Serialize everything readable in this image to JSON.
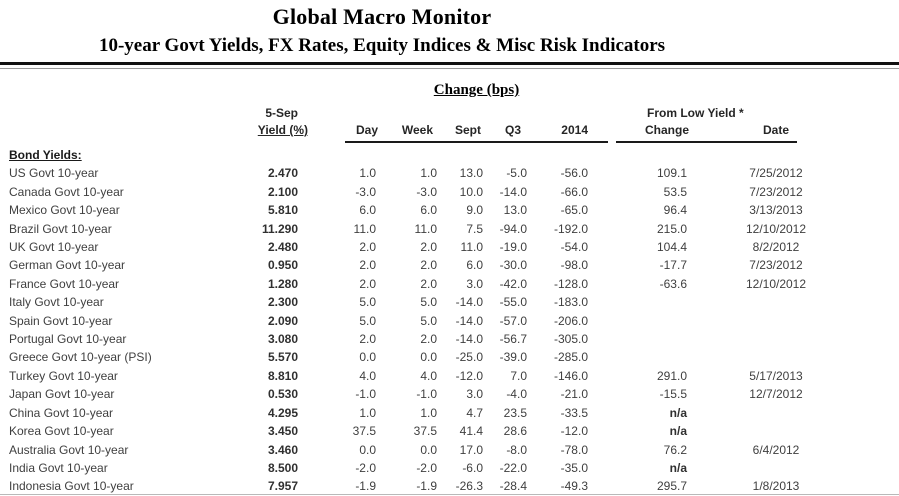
{
  "header": {
    "title": "Global Macro Monitor",
    "subtitle": "10-year Govt Yields, FX Rates, Equity Indices & Misc Risk Indicators"
  },
  "colors": {
    "text": "#3f3f3f",
    "heading": "#000000",
    "rule": "#111111"
  },
  "table": {
    "group_headers": {
      "change_bps": "Change (bps)",
      "from_low_yield": "From Low Yield *"
    },
    "columns": {
      "asof": "5-Sep",
      "yield": "Yield (%)",
      "day": "Day",
      "week": "Week",
      "sept": "Sept",
      "q3": "Q3",
      "y2014": "2014",
      "change": "Change",
      "date": "Date"
    },
    "section_label": "Bond Yields:",
    "rows": [
      {
        "name": "US Govt 10-year",
        "yield": "2.470",
        "day": "1.0",
        "week": "1.0",
        "sept": "13.0",
        "q3": "-5.0",
        "y2014": "-56.0",
        "change": "109.1",
        "date": "7/25/2012"
      },
      {
        "name": "Canada Govt 10-year",
        "yield": "2.100",
        "day": "-3.0",
        "week": "-3.0",
        "sept": "10.0",
        "q3": "-14.0",
        "y2014": "-66.0",
        "change": "53.5",
        "date": "7/23/2012"
      },
      {
        "name": "Mexico Govt 10-year",
        "yield": "5.810",
        "day": "6.0",
        "week": "6.0",
        "sept": "9.0",
        "q3": "13.0",
        "y2014": "-65.0",
        "change": "96.4",
        "date": "3/13/2013"
      },
      {
        "name": "Brazil Govt 10-year",
        "yield": "11.290",
        "day": "11.0",
        "week": "11.0",
        "sept": "7.5",
        "q3": "-94.0",
        "y2014": "-192.0",
        "change": "215.0",
        "date": "12/10/2012"
      },
      {
        "name": "UK Govt 10-year",
        "yield": "2.480",
        "day": "2.0",
        "week": "2.0",
        "sept": "11.0",
        "q3": "-19.0",
        "y2014": "-54.0",
        "change": "104.4",
        "date": "8/2/2012"
      },
      {
        "name": "German Govt 10-year",
        "yield": "0.950",
        "day": "2.0",
        "week": "2.0",
        "sept": "6.0",
        "q3": "-30.0",
        "y2014": "-98.0",
        "change": "-17.7",
        "date": "7/23/2012"
      },
      {
        "name": "France Govt 10-year",
        "yield": "1.280",
        "day": "2.0",
        "week": "2.0",
        "sept": "3.0",
        "q3": "-42.0",
        "y2014": "-128.0",
        "change": "-63.6",
        "date": "12/10/2012"
      },
      {
        "name": "Italy Govt 10-year",
        "yield": "2.300",
        "day": "5.0",
        "week": "5.0",
        "sept": "-14.0",
        "q3": "-55.0",
        "y2014": "-183.0",
        "change": "",
        "date": ""
      },
      {
        "name": "Spain Govt 10-year",
        "yield": "2.090",
        "day": "5.0",
        "week": "5.0",
        "sept": "-14.0",
        "q3": "-57.0",
        "y2014": "-206.0",
        "change": "",
        "date": ""
      },
      {
        "name": "Portugal Govt 10-year",
        "yield": "3.080",
        "day": "2.0",
        "week": "2.0",
        "sept": "-14.0",
        "q3": "-56.7",
        "y2014": "-305.0",
        "change": "",
        "date": ""
      },
      {
        "name": "Greece Govt 10-year (PSI)",
        "yield": "5.570",
        "day": "0.0",
        "week": "0.0",
        "sept": "-25.0",
        "q3": "-39.0",
        "y2014": "-285.0",
        "change": "",
        "date": ""
      },
      {
        "name": "Turkey Govt 10-year",
        "yield": "8.810",
        "day": "4.0",
        "week": "4.0",
        "sept": "-12.0",
        "q3": "7.0",
        "y2014": "-146.0",
        "change": "291.0",
        "date": "5/17/2013"
      },
      {
        "name": "Japan Govt 10-year",
        "yield": "0.530",
        "day": "-1.0",
        "week": "-1.0",
        "sept": "3.0",
        "q3": "-4.0",
        "y2014": "-21.0",
        "change": "-15.5",
        "date": "12/7/2012"
      },
      {
        "name": "China Govt 10-year",
        "yield": "4.295",
        "day": "1.0",
        "week": "1.0",
        "sept": "4.7",
        "q3": "23.5",
        "y2014": "-33.5",
        "change": "n/a",
        "date": ""
      },
      {
        "name": "Korea Govt 10-year",
        "yield": "3.450",
        "day": "37.5",
        "week": "37.5",
        "sept": "41.4",
        "q3": "28.6",
        "y2014": "-12.0",
        "change": "n/a",
        "date": ""
      },
      {
        "name": "Australia Govt 10-year",
        "yield": "3.460",
        "day": "0.0",
        "week": "0.0",
        "sept": "17.0",
        "q3": "-8.0",
        "y2014": "-78.0",
        "change": "76.2",
        "date": "6/4/2012"
      },
      {
        "name": "India Govt 10-year",
        "yield": "8.500",
        "day": "-2.0",
        "week": "-2.0",
        "sept": "-6.0",
        "q3": "-22.0",
        "y2014": "-35.0",
        "change": "n/a",
        "date": ""
      },
      {
        "name": "Indonesia Govt 10-year",
        "yield": "7.957",
        "day": "-1.9",
        "week": "-1.9",
        "sept": "-26.3",
        "q3": "-28.4",
        "y2014": "-49.3",
        "change": "295.7",
        "date": "1/8/2013"
      }
    ]
  }
}
